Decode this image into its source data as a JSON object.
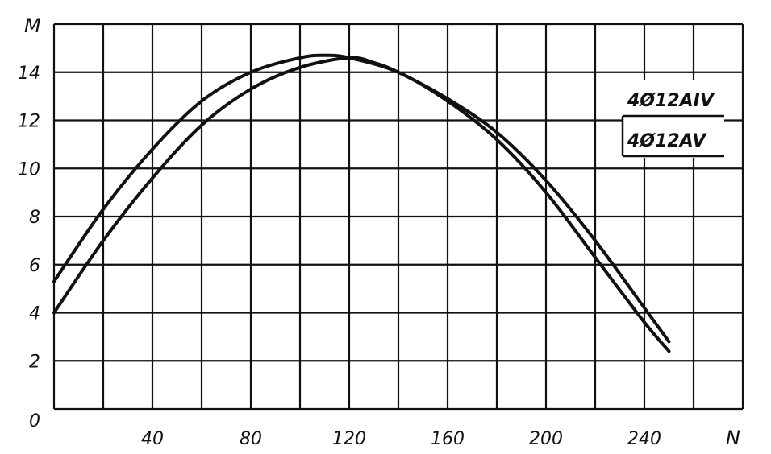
{
  "chart_data": {
    "type": "line",
    "xlabel": "N",
    "ylabel": "M",
    "xlim": [
      0,
      280
    ],
    "ylim": [
      0,
      16
    ],
    "x_ticks": [
      "40",
      "80",
      "120",
      "160",
      "200",
      "240"
    ],
    "y_ticks": [
      "2",
      "4",
      "6",
      "8",
      "10",
      "12",
      "14"
    ],
    "y_zero_label": "0",
    "grid": true,
    "legend": "right",
    "series": [
      {
        "name": "4Ø12AIV",
        "points": [
          [
            0,
            5.3
          ],
          [
            20,
            8.3
          ],
          [
            40,
            10.8
          ],
          [
            60,
            12.8
          ],
          [
            80,
            14.0
          ],
          [
            100,
            14.6
          ],
          [
            110,
            14.7
          ],
          [
            120,
            14.6
          ],
          [
            140,
            14.0
          ],
          [
            160,
            12.8
          ],
          [
            180,
            11.2
          ],
          [
            200,
            9.0
          ],
          [
            220,
            6.3
          ],
          [
            240,
            3.6
          ],
          [
            250,
            2.4
          ]
        ]
      },
      {
        "name": "4Ø12AV",
        "points": [
          [
            0,
            4.0
          ],
          [
            20,
            7.0
          ],
          [
            40,
            9.6
          ],
          [
            60,
            11.8
          ],
          [
            80,
            13.3
          ],
          [
            100,
            14.2
          ],
          [
            120,
            14.6
          ],
          [
            130,
            14.4
          ],
          [
            140,
            14.0
          ],
          [
            160,
            12.9
          ],
          [
            180,
            11.5
          ],
          [
            200,
            9.5
          ],
          [
            220,
            7.0
          ],
          [
            240,
            4.2
          ],
          [
            250,
            2.8
          ]
        ]
      }
    ]
  }
}
